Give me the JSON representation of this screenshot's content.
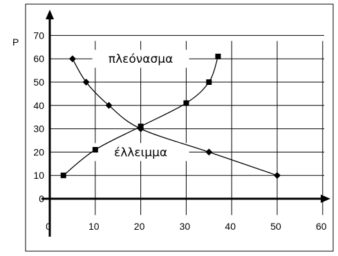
{
  "chart_data": {
    "type": "line",
    "title": "",
    "xlabel": "",
    "ylabel": "P",
    "xlim": [
      0,
      60
    ],
    "ylim": [
      0,
      70
    ],
    "x_ticks": [
      0,
      10,
      20,
      30,
      40,
      50,
      60
    ],
    "y_ticks": [
      0,
      10,
      20,
      30,
      40,
      50,
      60,
      70
    ],
    "grid": "horizontal and vertical",
    "legend": "none",
    "series": [
      {
        "marker": "diamond",
        "color": "#000000",
        "x": [
          5,
          8,
          13,
          20,
          35,
          50
        ],
        "y": [
          60,
          50,
          40,
          30,
          20,
          10
        ]
      },
      {
        "marker": "square",
        "color": "#000000",
        "x": [
          3,
          10,
          20,
          30,
          35,
          37
        ],
        "y": [
          10,
          21,
          31,
          41,
          50,
          61
        ]
      }
    ],
    "annotations": [
      {
        "text": "πλεόνασμα",
        "x": 20,
        "y": 60
      },
      {
        "text": "έλλειμμα",
        "x": 20,
        "y": 20
      }
    ]
  }
}
